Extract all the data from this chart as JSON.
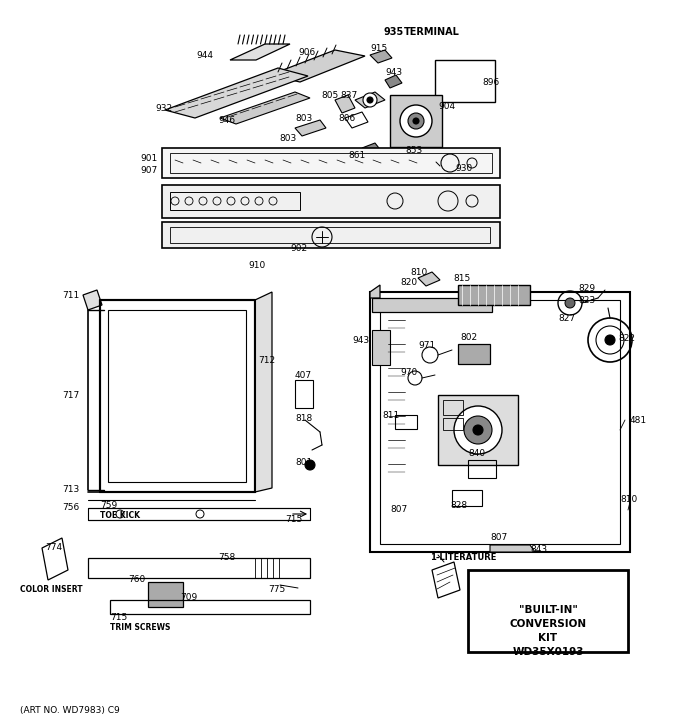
{
  "bg_color": "#ffffff",
  "fig_width": 6.8,
  "fig_height": 7.25,
  "dpi": 100,
  "bottom_text": "(ART NO. WD7983) C9",
  "literature_label": "1-LITERATURE",
  "box_lines": [
    "\"BUILT-IN\"",
    "CONVERSION",
    "KIT",
    "WD35X0193"
  ]
}
